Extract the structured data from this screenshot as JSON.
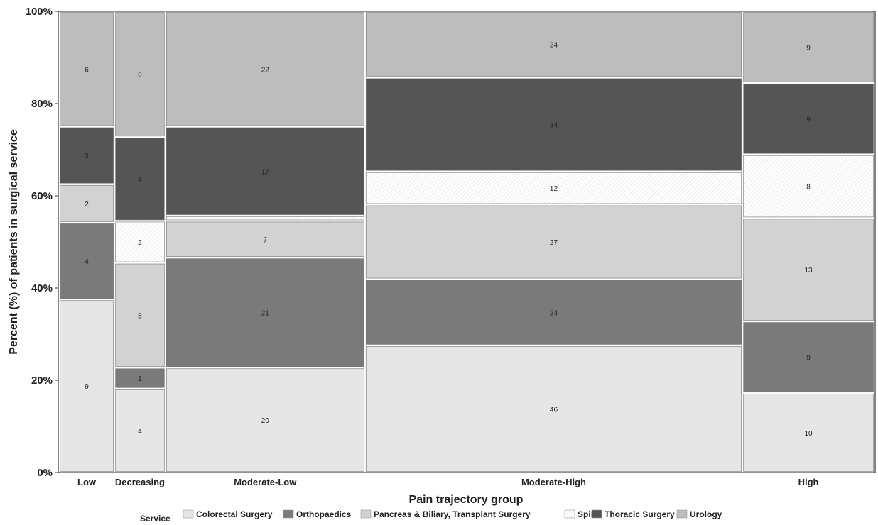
{
  "chart_data": {
    "type": "mosaic",
    "title": "",
    "xlabel": "Pain trajectory group",
    "ylabel": "Percent (%) of patients in surgical service",
    "ylim": [
      0,
      100
    ],
    "y_ticks": [
      "0%",
      "20%",
      "40%",
      "60%",
      "80%",
      "100%"
    ],
    "legend_title": "Service",
    "legend_position": "bottom",
    "series": [
      {
        "name": "Colorectal Surgery",
        "color": "#e6e6e6",
        "pattern": "none"
      },
      {
        "name": "Orthopaedics",
        "color": "#7a7a7a",
        "pattern": "none"
      },
      {
        "name": "Pancreas & Biliary, Transplant Surgery",
        "color": "#d2d2d2",
        "pattern": "none"
      },
      {
        "name": "Spine",
        "color": "#ffffff",
        "pattern": "hatch"
      },
      {
        "name": "Thoracic Surgery",
        "color": "#555555",
        "pattern": "none"
      },
      {
        "name": "Urology",
        "color": "#bdbdbd",
        "pattern": "none"
      }
    ],
    "categories": [
      {
        "name": "Low",
        "counts": [
          9,
          4,
          2,
          0,
          3,
          6
        ]
      },
      {
        "name": "Decreasing",
        "counts": [
          4,
          1,
          5,
          2,
          4,
          6
        ]
      },
      {
        "name": "Moderate-Low",
        "counts": [
          20,
          21,
          7,
          1,
          17,
          22
        ]
      },
      {
        "name": "Moderate-High",
        "counts": [
          46,
          24,
          27,
          12,
          34,
          24
        ]
      },
      {
        "name": "High",
        "counts": [
          10,
          9,
          13,
          8,
          9,
          9
        ]
      }
    ],
    "labeled_counts": [
      [
        "9",
        "4",
        "2",
        "",
        "3",
        "6"
      ],
      [
        "4",
        "1",
        "5",
        "2",
        "4",
        "6"
      ],
      [
        "20",
        "21",
        "7",
        "",
        "17",
        "22"
      ],
      [
        "46",
        "24",
        "27",
        "12",
        "34",
        "24"
      ],
      [
        "10",
        "9",
        "13",
        "8",
        "9",
        "9"
      ]
    ]
  }
}
